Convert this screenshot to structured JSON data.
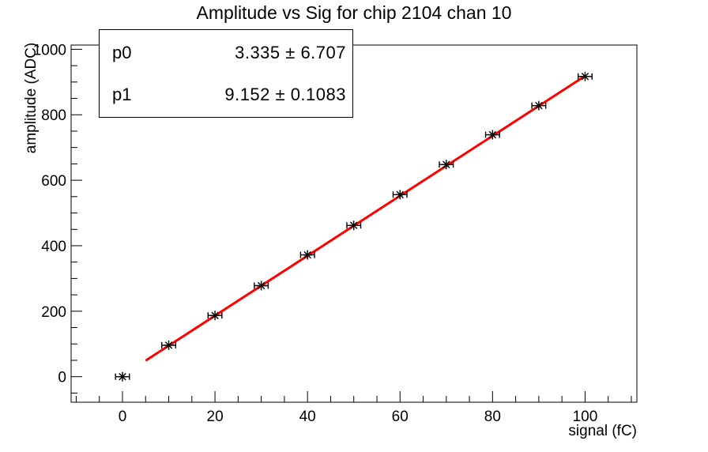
{
  "title": "Amplitude vs Sig for chip 2104 chan 10",
  "stats_box": {
    "rows": [
      {
        "label": "p0",
        "value": "3.335 ± 6.707"
      },
      {
        "label": "p1",
        "value": "9.152 ± 0.1083"
      }
    ]
  },
  "axes": {
    "x_title": "signal (fC)",
    "y_title": "amplitude (ADC)"
  },
  "colors": {
    "background": "#ffffff",
    "axis": "#000000",
    "marker": "#000000",
    "fit_line": "#ff0000",
    "stats_border": "#000000"
  },
  "chart_data": {
    "type": "scatter",
    "title": "Amplitude vs Sig for chip 2104 chan 10",
    "xlabel": "signal (fC)",
    "ylabel": "amplitude (ADC)",
    "x": [
      0,
      10,
      20,
      30,
      40,
      50,
      60,
      70,
      80,
      90,
      100
    ],
    "y": [
      0,
      96,
      187,
      278,
      372,
      462,
      556,
      648,
      739,
      828,
      917
    ],
    "x_error": 1.5,
    "xlim": [
      -11.1,
      111.2
    ],
    "ylim": [
      -78,
      1013
    ],
    "x_major_ticks": [
      0,
      20,
      40,
      60,
      80,
      100
    ],
    "x_minor_step": 5,
    "y_major_ticks": [
      0,
      200,
      400,
      600,
      800,
      1000
    ],
    "y_minor_step": 50,
    "grid": false,
    "legend_position": "none",
    "marker_style": "star-with-x-error-bar",
    "fit_line": {
      "label": "pol1",
      "p0": 3.335,
      "p1": 9.152,
      "x_range": [
        5.2,
        100
      ],
      "color": "#ff0000"
    }
  }
}
